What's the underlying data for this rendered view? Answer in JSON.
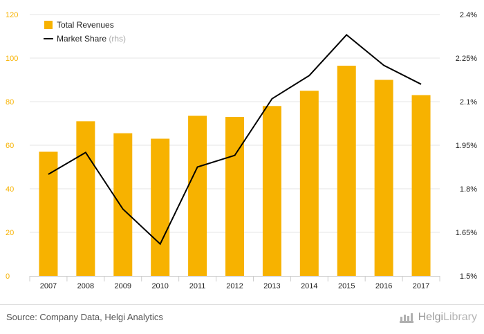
{
  "chart_data": {
    "type": "bar",
    "categories": [
      "2007",
      "2008",
      "2009",
      "2010",
      "2011",
      "2012",
      "2013",
      "2014",
      "2015",
      "2016",
      "2017"
    ],
    "series": [
      {
        "name": "Total Revenues",
        "type": "bar",
        "axis": "left",
        "color": "#F7B200",
        "values": [
          57,
          71,
          65.5,
          63,
          73.5,
          73,
          78,
          85,
          96.5,
          90,
          83
        ]
      },
      {
        "name": "Market Share",
        "name_suffix": "(rhs)",
        "type": "line",
        "axis": "right",
        "color": "#000000",
        "values": [
          1.85,
          1.925,
          1.73,
          1.61,
          1.875,
          1.915,
          2.11,
          2.19,
          2.33,
          2.225,
          2.16
        ]
      }
    ],
    "y_left": {
      "ylim": [
        0,
        120
      ],
      "ticks": [
        "0",
        "20",
        "40",
        "60",
        "80",
        "100",
        "120"
      ],
      "tick_color": "#F7B200"
    },
    "y_right": {
      "ylim": [
        1.5,
        2.4
      ],
      "ticks": [
        "1.5%",
        "1.65%",
        "1.8%",
        "1.95%",
        "2.1%",
        "2.25%",
        "2.4%"
      ],
      "tick_color": "#222222"
    },
    "grid": true,
    "legend_position": "top-left"
  },
  "footer": {
    "source": "Source: Company Data, Helgi Analytics",
    "brand_primary": "Helgi",
    "brand_secondary": "Library",
    "brand_icon": "helgi-library-icon"
  }
}
